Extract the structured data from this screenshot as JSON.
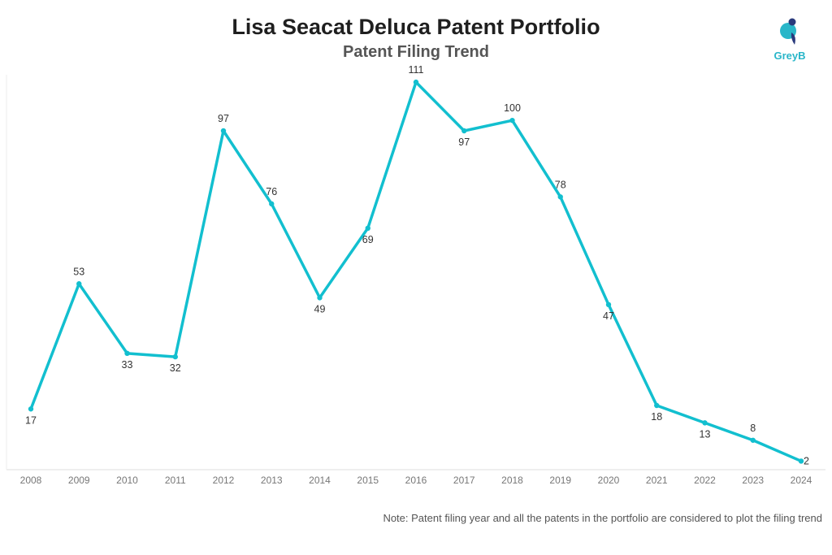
{
  "header": {
    "title": "Lisa Seacat Deluca Patent Portfolio",
    "subtitle": "Patent Filing Trend"
  },
  "logo": {
    "icon": "greyb-logo-icon",
    "text": "GreyB"
  },
  "note": "Note: Patent filing year and all the patents in the portfolio are considered to plot the filing trend",
  "colors": {
    "line": "#12bfcf",
    "logo_primary": "#29b6c9",
    "logo_secondary": "#2a3a7c"
  },
  "chart_data": {
    "type": "line",
    "title": "Lisa Seacat Deluca Patent Portfolio",
    "subtitle": "Patent Filing Trend",
    "xlabel": "",
    "ylabel": "",
    "categories": [
      "2008",
      "2009",
      "2010",
      "2011",
      "2012",
      "2013",
      "2014",
      "2015",
      "2016",
      "2017",
      "2018",
      "2019",
      "2020",
      "2021",
      "2022",
      "2023",
      "2024"
    ],
    "values": [
      17,
      53,
      33,
      32,
      97,
      76,
      49,
      69,
      111,
      97,
      100,
      78,
      47,
      18,
      13,
      8,
      2
    ],
    "label_positions": [
      "below",
      "above",
      "below",
      "below",
      "above",
      "above",
      "below",
      "below",
      "above",
      "below",
      "above",
      "above",
      "below",
      "below",
      "below",
      "above",
      "right"
    ],
    "ylim": [
      0,
      115
    ],
    "grid": false,
    "legend": "none"
  }
}
